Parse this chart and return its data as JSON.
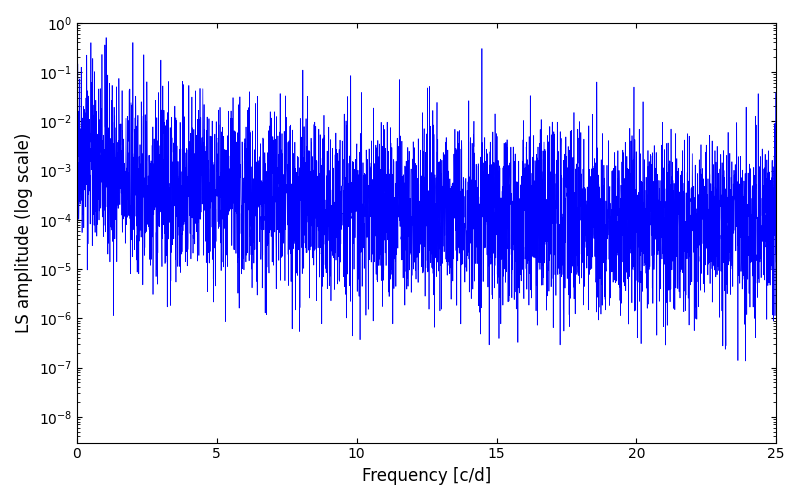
{
  "title": "",
  "xlabel": "Frequency [c/d]",
  "ylabel": "LS amplitude (log scale)",
  "xlim": [
    0,
    25
  ],
  "ylim": [
    3e-09,
    1.0
  ],
  "color": "#0000ff",
  "linewidth": 0.5,
  "yscale": "log",
  "n_points": 5000,
  "freq_max": 25.0,
  "seed": 42,
  "background_color": "#ffffff",
  "figsize": [
    8.0,
    5.0
  ],
  "dpi": 100
}
